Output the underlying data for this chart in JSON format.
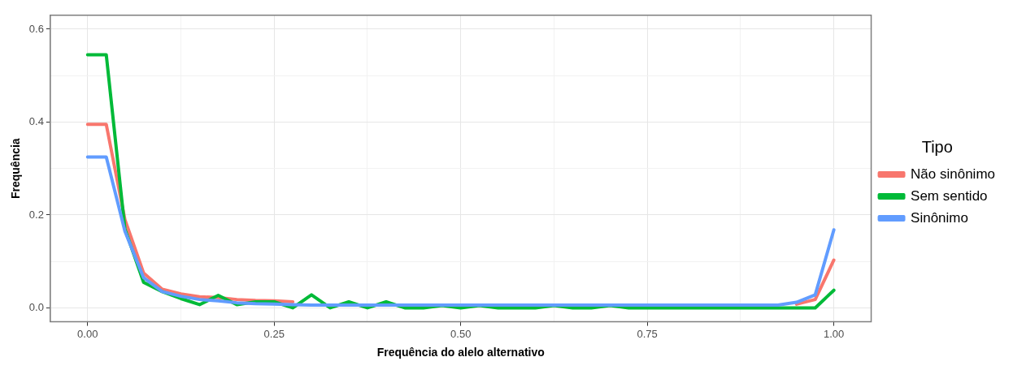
{
  "chart_data": {
    "type": "line",
    "xlabel": "Frequência do alelo alternativo",
    "ylabel": "Frequência",
    "legend_title": "Tipo",
    "legend": "right",
    "grid": true,
    "x": [
      0,
      0.025,
      0.05,
      0.075,
      0.1,
      0.125,
      0.15,
      0.175,
      0.2,
      0.225,
      0.25,
      0.275,
      0.3,
      0.325,
      0.35,
      0.375,
      0.4,
      0.425,
      0.45,
      0.475,
      0.5,
      0.525,
      0.55,
      0.575,
      0.6,
      0.625,
      0.65,
      0.675,
      0.7,
      0.725,
      0.75,
      0.775,
      0.8,
      0.825,
      0.85,
      0.875,
      0.9,
      0.925,
      0.95,
      0.975,
      1
    ],
    "xlim": [
      -0.05,
      1.05
    ],
    "xticks": [
      {
        "value": 0,
        "label": "0.00"
      },
      {
        "value": 0.125,
        "label": null
      },
      {
        "value": 0.25,
        "label": "0.25"
      },
      {
        "value": 0.375,
        "label": null
      },
      {
        "value": 0.5,
        "label": "0.50"
      },
      {
        "value": 0.625,
        "label": null
      },
      {
        "value": 0.75,
        "label": "0.75"
      },
      {
        "value": 0.875,
        "label": null
      },
      {
        "value": 1,
        "label": "1.00"
      }
    ],
    "ylim": [
      -0.03,
      0.63
    ],
    "yticks": [
      {
        "value": 0,
        "label": "0.0"
      },
      {
        "value": 0.1,
        "label": null
      },
      {
        "value": 0.2,
        "label": "0.2"
      },
      {
        "value": 0.3,
        "label": null
      },
      {
        "value": 0.4,
        "label": "0.4"
      },
      {
        "value": 0.5,
        "label": null
      },
      {
        "value": 0.6,
        "label": "0.6"
      }
    ],
    "line_style": "solid",
    "marker": "none",
    "series": [
      {
        "name": "Não sinônimo",
        "color": "#f8766d",
        "values": [
          0.395,
          0.395,
          0.19,
          0.075,
          0.04,
          0.03,
          0.024,
          0.022,
          0.018,
          0.016,
          0.015,
          0.013,
          null,
          null,
          null,
          null,
          null,
          null,
          null,
          null,
          null,
          null,
          null,
          null,
          null,
          null,
          null,
          null,
          null,
          null,
          null,
          null,
          null,
          null,
          null,
          null,
          null,
          null,
          0.008,
          0.018,
          0.103
        ]
      },
      {
        "name": "Sem sentido",
        "color": "#00ba38",
        "values": [
          0.545,
          0.545,
          0.17,
          0.055,
          0.035,
          0.02,
          0.007,
          0.027,
          0.007,
          0.013,
          0.013,
          0,
          0.028,
          0,
          0.013,
          0,
          0.013,
          0,
          0,
          0.005,
          0,
          0.005,
          0,
          0,
          0,
          0.005,
          0,
          0,
          0.005,
          0,
          0,
          0,
          0,
          0,
          0,
          0,
          0,
          0,
          0,
          0,
          0.038
        ]
      },
      {
        "name": "Sinônimo",
        "color": "#619cff",
        "values": [
          0.325,
          0.325,
          0.165,
          0.065,
          0.035,
          0.025,
          0.018,
          0.015,
          0.011,
          0.009,
          0.008,
          0.007,
          0.006,
          0.006,
          0.006,
          0.006,
          0.006,
          0.006,
          0.006,
          0.006,
          0.006,
          0.006,
          0.006,
          0.006,
          0.006,
          0.006,
          0.006,
          0.006,
          0.006,
          0.006,
          0.006,
          0.006,
          0.006,
          0.006,
          0.006,
          0.006,
          0.006,
          0.006,
          0.012,
          0.028,
          0.168
        ]
      }
    ]
  }
}
